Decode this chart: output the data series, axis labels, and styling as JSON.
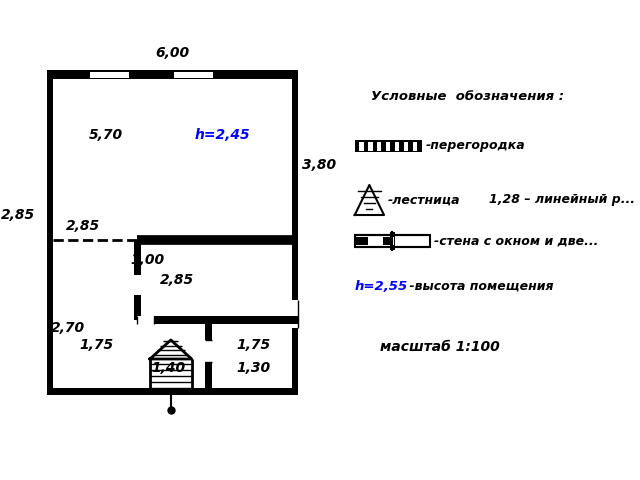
{
  "bg_color": "#ffffff",
  "wall_color": "#000000",
  "wall_lw": 3.0,
  "thin_lw": 1.5,
  "dashed_lw": 1.5,
  "text_color": "#000000",
  "blue_color": "#0000ff",
  "fig_width": 6.4,
  "fig_height": 4.8,
  "legend_title": "Условные  обозначения :",
  "legend_peregородка": "-перегородка",
  "legend_лестница": "-лестница",
  "legend_линейный": "1,28 – линейный р...",
  "legend_стена": "-стена с окном и две...",
  "legend_высота": "-высота помещения",
  "legend_масштаб": "масштаб 1:100",
  "legend_h255": "h=2,55"
}
